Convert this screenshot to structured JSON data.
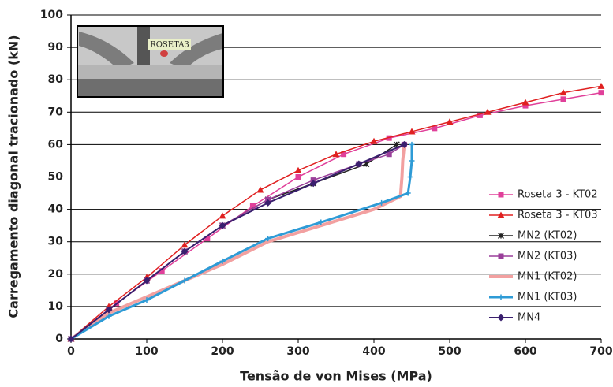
{
  "chart_data": {
    "type": "line",
    "x_label": "Tensão de von Mises (MPa)",
    "y_label": "Carregamento diagonal tracionado (kN)",
    "inset_label": "ROSETA3",
    "xlim": [
      0,
      700
    ],
    "xticks": [
      0,
      100,
      200,
      300,
      400,
      500,
      600,
      700
    ],
    "ylim": [
      0,
      100
    ],
    "yticks": [
      0,
      10,
      20,
      30,
      40,
      50,
      60,
      70,
      80,
      90,
      100
    ],
    "grid": true,
    "series": [
      {
        "name": "Roseta 3 - KT02",
        "color": "#e0409a",
        "marker": "square",
        "width": 1.5,
        "x": [
          0,
          60,
          120,
          180,
          240,
          300,
          360,
          420,
          480,
          540,
          600,
          650,
          700
        ],
        "values": [
          0,
          11,
          21,
          31,
          41,
          50,
          57,
          62,
          65,
          69,
          72,
          74,
          76
        ]
      },
      {
        "name": "Roseta 3 - KT03",
        "color": "#e02020",
        "marker": "triangle",
        "width": 1.5,
        "x": [
          0,
          50,
          100,
          150,
          200,
          250,
          300,
          350,
          400,
          450,
          500,
          550,
          600,
          650,
          700
        ],
        "values": [
          0,
          10,
          19,
          29,
          38,
          46,
          52,
          57,
          61,
          64,
          67,
          70,
          73,
          76,
          78
        ]
      },
      {
        "name": "MN2 (KT02)",
        "color": "#222222",
        "marker": "star",
        "width": 1.5,
        "x": [
          0,
          50,
          100,
          150,
          200,
          260,
          320,
          390,
          430
        ],
        "values": [
          0,
          9,
          18,
          27,
          35,
          43,
          48,
          54,
          60
        ]
      },
      {
        "name": "MN2 (KT03)",
        "color": "#9a3f9a",
        "marker": "square",
        "width": 1.5,
        "x": [
          0,
          50,
          100,
          150,
          200,
          260,
          320,
          380,
          420,
          440
        ],
        "values": [
          0,
          9,
          18,
          27,
          35,
          43,
          49,
          54,
          57,
          60
        ]
      },
      {
        "name": "MN1 (KT02)",
        "color": "#f2a0a0",
        "marker": "none",
        "width": 4,
        "x": [
          0,
          50,
          100,
          150,
          200,
          260,
          330,
          400,
          435,
          437,
          438,
          440
        ],
        "values": [
          0,
          8,
          13,
          18,
          23,
          30,
          35,
          40,
          44,
          50,
          55,
          60
        ]
      },
      {
        "name": "MN1 (KT03)",
        "color": "#2e9bd6",
        "marker": "plus",
        "width": 3,
        "x": [
          0,
          50,
          100,
          150,
          200,
          260,
          330,
          410,
          445,
          448,
          450,
          450
        ],
        "values": [
          0,
          7,
          12,
          18,
          24,
          31,
          36,
          42,
          45,
          50,
          55,
          60
        ]
      },
      {
        "name": "MN4",
        "color": "#3a1f6e",
        "marker": "diamond",
        "width": 2,
        "x": [
          0,
          50,
          100,
          150,
          200,
          260,
          320,
          380,
          440
        ],
        "values": [
          0,
          9,
          18,
          27,
          35,
          42,
          48,
          54,
          60
        ]
      }
    ]
  }
}
